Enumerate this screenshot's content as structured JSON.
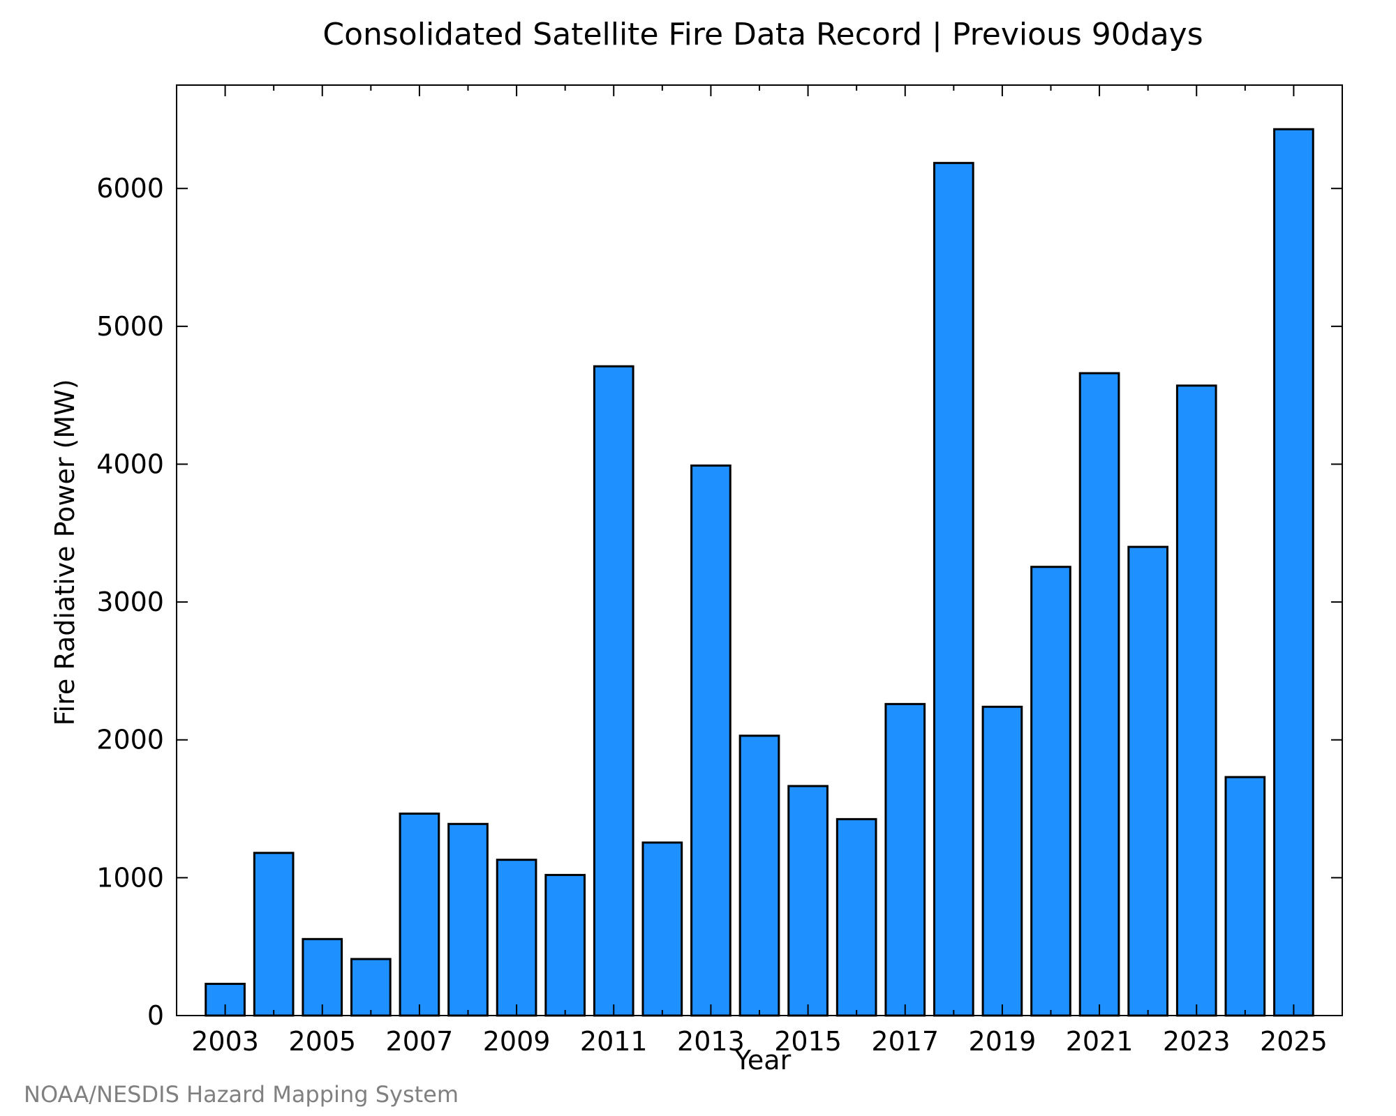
{
  "chart_data": {
    "type": "bar",
    "title": "Consolidated Satellite Fire Data Record | Previous 90days",
    "xlabel": "Year",
    "ylabel": "Fire Radiative Power (MW)",
    "categories": [
      "2003",
      "2004",
      "2005",
      "2006",
      "2007",
      "2008",
      "2009",
      "2010",
      "2011",
      "2012",
      "2013",
      "2014",
      "2015",
      "2016",
      "2017",
      "2018",
      "2019",
      "2020",
      "2021",
      "2022",
      "2023",
      "2024",
      "2025"
    ],
    "values": [
      230,
      1180,
      555,
      410,
      1465,
      1390,
      1130,
      1020,
      4710,
      1255,
      3990,
      2030,
      1665,
      1425,
      2260,
      6185,
      2240,
      3255,
      4660,
      3400,
      4570,
      1730,
      6430
    ],
    "ylim": [
      0,
      6750
    ],
    "yticks": [
      0,
      1000,
      2000,
      3000,
      4000,
      5000,
      6000
    ],
    "xtick_labels": [
      "2003",
      "2005",
      "2007",
      "2009",
      "2011",
      "2013",
      "2015",
      "2017",
      "2019",
      "2021",
      "2023",
      "2025"
    ],
    "bar_color": "#1e90ff",
    "grid": false
  },
  "credit": "NOAA/NESDIS Hazard Mapping System"
}
